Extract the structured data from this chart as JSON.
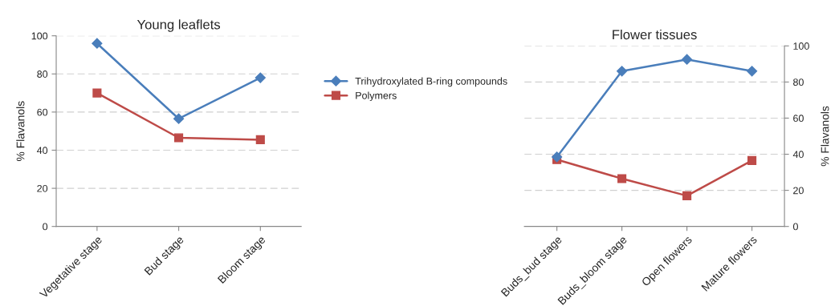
{
  "chart_data": [
    {
      "type": "line",
      "title": "Young leaflets",
      "ylabel": "% Flavanols",
      "categories": [
        "Vegetative stage",
        "Bud stage",
        "Bloom stage"
      ],
      "ylim": [
        0,
        100
      ],
      "yticks": [
        0,
        20,
        40,
        60,
        80,
        100
      ],
      "grid": "y",
      "legend": "right",
      "series": [
        {
          "name": "Trihydroxylated B-ring compounds",
          "color": "#4a7ebb",
          "marker": "diamond",
          "values": [
            96,
            56.5,
            78
          ]
        },
        {
          "name": "Polymers",
          "color": "#be4b48",
          "marker": "square",
          "values": [
            70,
            46.5,
            45.5
          ]
        }
      ]
    },
    {
      "type": "line",
      "title": "Flower tissues",
      "y2label": "% Flavanols",
      "categories": [
        "Buds_bud stage",
        "Buds_bloom stage",
        "Open flowers",
        "Mature flowers"
      ],
      "y2lim": [
        0,
        100
      ],
      "y2ticks": [
        0,
        20,
        40,
        60,
        80,
        100
      ],
      "grid": "y",
      "legend": false,
      "series": [
        {
          "color": "#4a7ebb",
          "marker": "diamond",
          "axis": "y2",
          "values": [
            38.5,
            86,
            92.5,
            86
          ]
        },
        {
          "color": "#be4b48",
          "marker": "square",
          "axis": "y2",
          "values": [
            37,
            26.5,
            17,
            36.5
          ]
        }
      ]
    }
  ]
}
